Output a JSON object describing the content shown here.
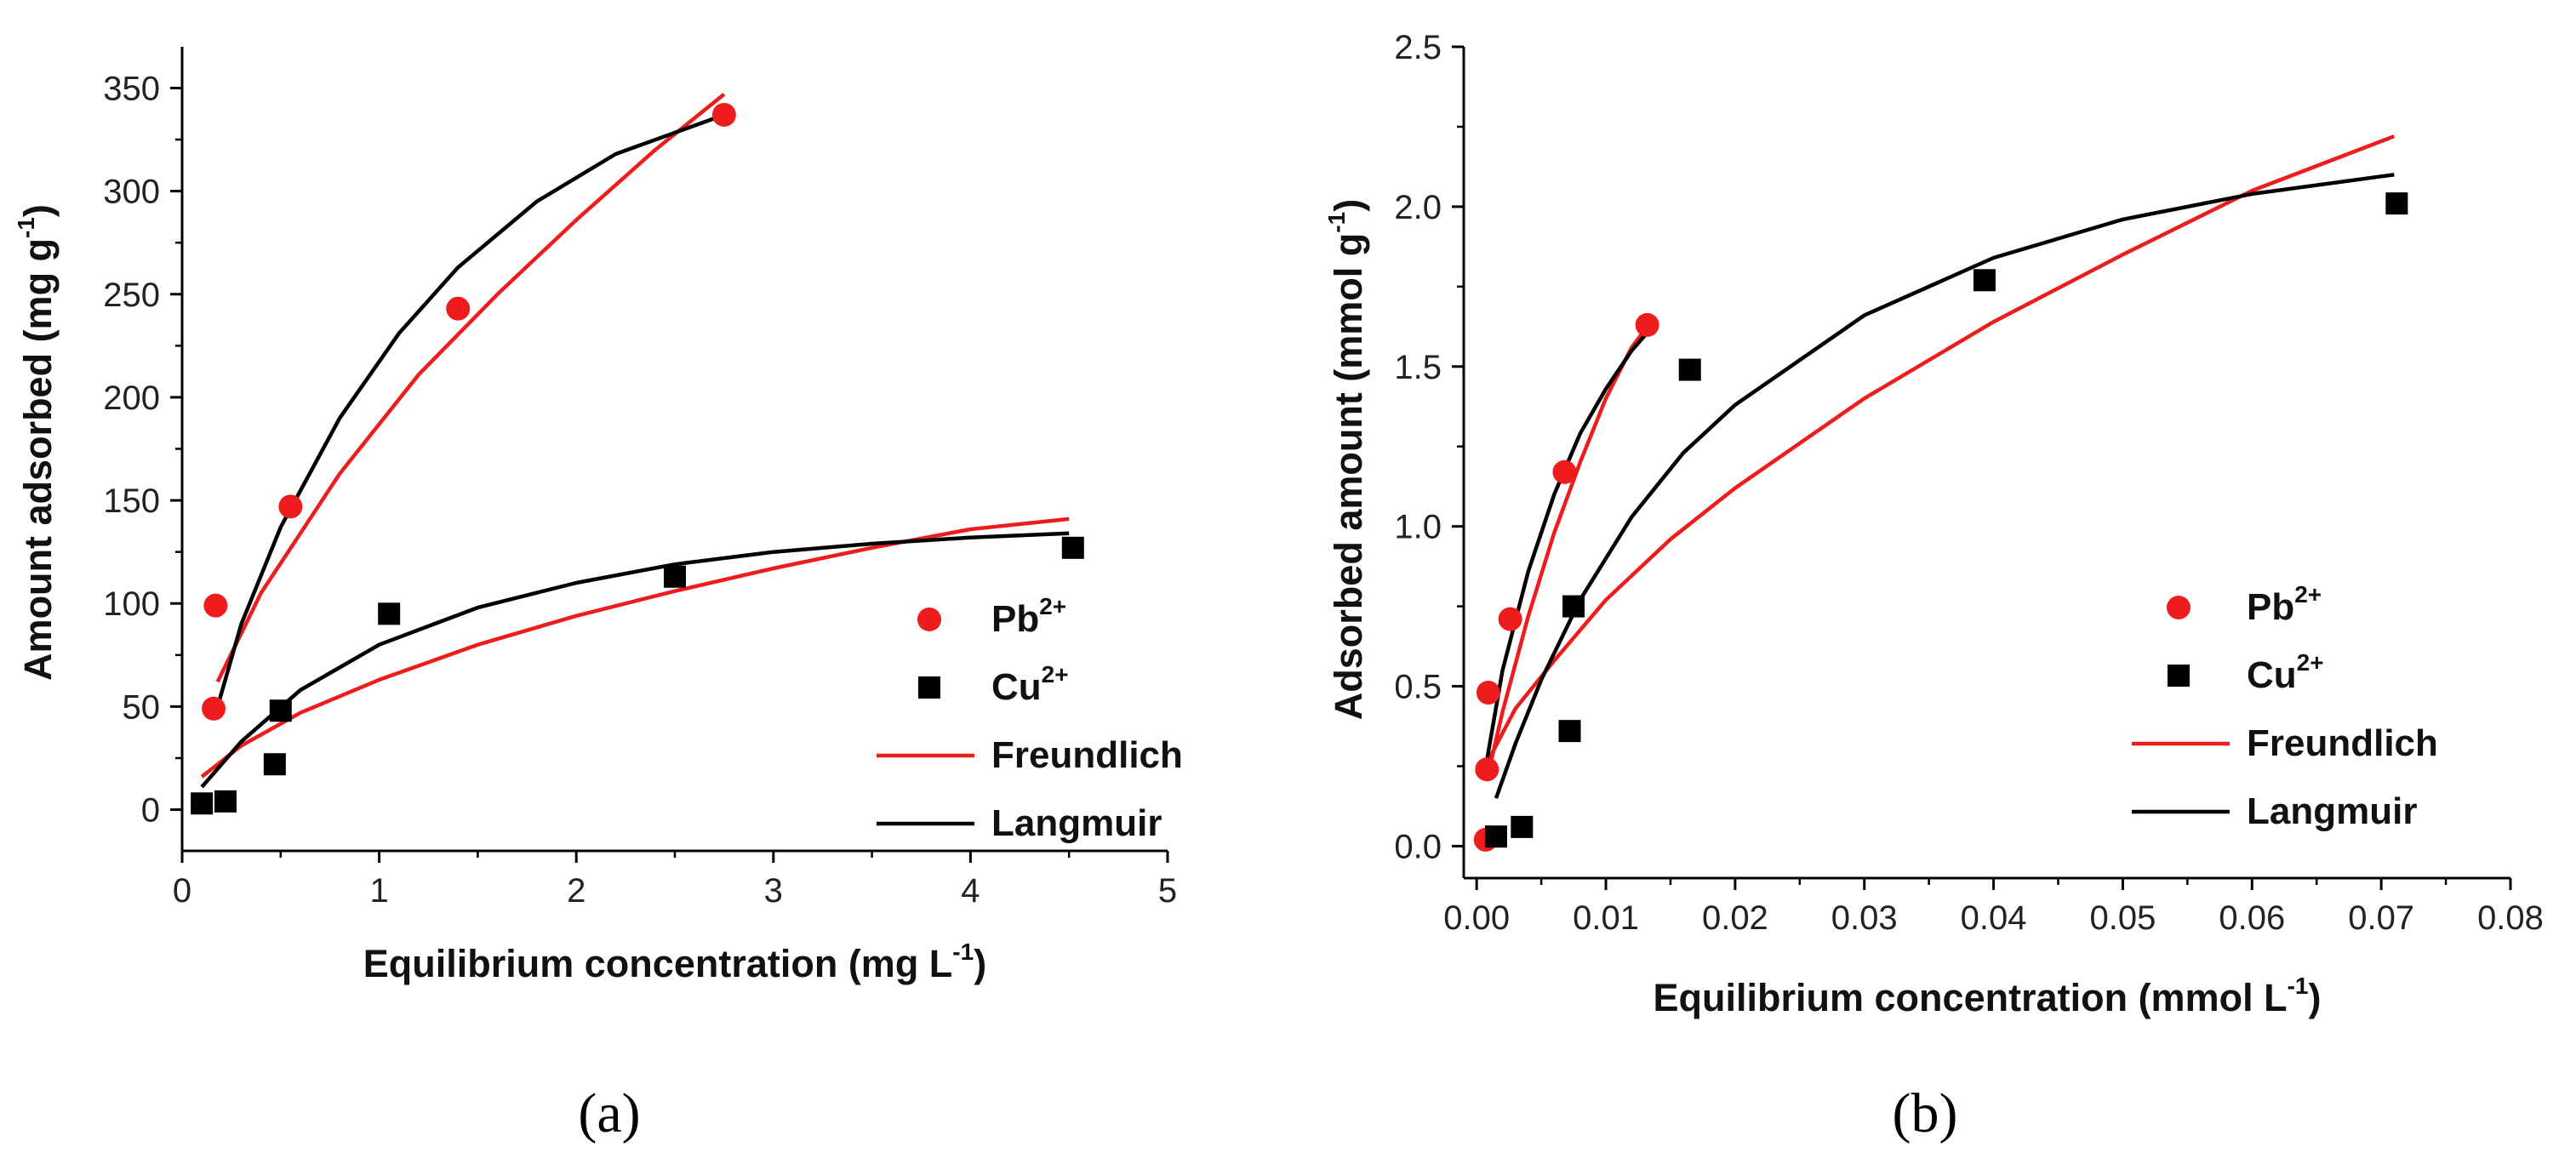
{
  "chart_data": [
    {
      "type": "scatter",
      "panel_label": "(a)",
      "panel_letter": "a",
      "xlabel": "Equilibrium concentration (mg L",
      "xlabel_sup": "-1",
      "xlabel_tail": ")",
      "ylabel": "Amount adsorbed (mg g",
      "ylabel_sup": "-1",
      "ylabel_tail": ")",
      "xlim": [
        0,
        5
      ],
      "ylim": [
        -20,
        370
      ],
      "xticks": [
        0,
        1,
        2,
        3,
        4,
        5
      ],
      "xtick_labels": [
        "0",
        "1",
        "2",
        "3",
        "4",
        "5"
      ],
      "yticks": [
        0,
        50,
        100,
        150,
        200,
        250,
        300,
        350
      ],
      "ytick_labels": [
        "0",
        "50",
        "100",
        "150",
        "200",
        "250",
        "300",
        "350"
      ],
      "grid": false,
      "legend_position": "bottom-right",
      "series": [
        {
          "name": "Pb",
          "name_sup": "2+",
          "kind": "scatter",
          "marker": "circle",
          "color": "#ee1c1c",
          "x": [
            0.16,
            0.17,
            0.55,
            1.4,
            2.75
          ],
          "y": [
            49,
            99,
            147,
            243,
            337
          ]
        },
        {
          "name": "Cu",
          "name_sup": "2+",
          "kind": "scatter",
          "marker": "square",
          "color": "#000000",
          "x": [
            0.1,
            0.22,
            0.47,
            0.5,
            1.05,
            2.5,
            4.52
          ],
          "y": [
            3,
            4,
            22,
            48,
            95,
            113,
            127
          ]
        },
        {
          "name": "Freundlich",
          "kind": "line",
          "color": "#ee1c1c",
          "segments": [
            {
              "x": [
                0.18,
                0.4,
                0.8,
                1.2,
                1.6,
                2.0,
                2.4,
                2.75
              ],
              "y": [
                62,
                105,
                163,
                211,
                250,
                286,
                320,
                347
              ]
            },
            {
              "x": [
                0.1,
                0.3,
                0.6,
                1.0,
                1.5,
                2.0,
                2.5,
                3.0,
                3.5,
                4.0,
                4.5
              ],
              "y": [
                16,
                31,
                47,
                63,
                80,
                94,
                106,
                117,
                127,
                136,
                141
              ]
            }
          ]
        },
        {
          "name": "Langmuir",
          "kind": "line",
          "color": "#000000",
          "segments": [
            {
              "x": [
                0.18,
                0.3,
                0.5,
                0.8,
                1.1,
                1.4,
                1.8,
                2.2,
                2.75
              ],
              "y": [
                50,
                90,
                137,
                190,
                231,
                263,
                295,
                318,
                337
              ]
            },
            {
              "x": [
                0.1,
                0.3,
                0.6,
                1.0,
                1.5,
                2.0,
                2.5,
                3.0,
                3.5,
                4.0,
                4.5
              ],
              "y": [
                11,
                33,
                58,
                80,
                98,
                110,
                119,
                125,
                129,
                132,
                134
              ]
            }
          ]
        }
      ]
    },
    {
      "type": "scatter",
      "panel_label": "(b)",
      "panel_letter": "b",
      "xlabel": "Equilibrium concentration (mmol L",
      "xlabel_sup": "-1",
      "xlabel_tail": ")",
      "ylabel": "Adsorbed amount (mmol g",
      "ylabel_sup": "-1",
      "ylabel_tail": ")",
      "xlim": [
        -0.001,
        0.08
      ],
      "ylim": [
        -0.1,
        2.5
      ],
      "xticks": [
        0.0,
        0.01,
        0.02,
        0.03,
        0.04,
        0.05,
        0.06,
        0.07,
        0.08
      ],
      "xtick_labels": [
        "0.00",
        "0.01",
        "0.02",
        "0.03",
        "0.04",
        "0.05",
        "0.06",
        "0.07",
        "0.08"
      ],
      "yticks": [
        0.0,
        0.5,
        1.0,
        1.5,
        2.0,
        2.5
      ],
      "ytick_labels": [
        "0.0",
        "0.5",
        "1.0",
        "1.5",
        "2.0",
        "2.5"
      ],
      "grid": false,
      "legend_position": "center-right",
      "series": [
        {
          "name": "Pb",
          "name_sup": "2+",
          "kind": "scatter",
          "marker": "circle",
          "color": "#ee1c1c",
          "x": [
            0.0007,
            0.0008,
            0.0009,
            0.0026,
            0.0068,
            0.0132
          ],
          "y": [
            0.02,
            0.24,
            0.48,
            0.71,
            1.17,
            1.63
          ]
        },
        {
          "name": "Cu",
          "name_sup": "2+",
          "kind": "scatter",
          "marker": "square",
          "color": "#000000",
          "x": [
            0.0015,
            0.0035,
            0.0072,
            0.0075,
            0.0165,
            0.0393,
            0.0712
          ],
          "y": [
            0.03,
            0.06,
            0.36,
            0.75,
            1.49,
            1.77,
            2.01
          ]
        },
        {
          "name": "Freundlich",
          "kind": "line",
          "color": "#ee1c1c",
          "segments": [
            {
              "x": [
                0.0008,
                0.002,
                0.004,
                0.006,
                0.008,
                0.01,
                0.012,
                0.0133
              ],
              "y": [
                0.21,
                0.42,
                0.72,
                0.98,
                1.2,
                1.4,
                1.56,
                1.63
              ]
            },
            {
              "x": [
                0.0008,
                0.003,
                0.006,
                0.01,
                0.015,
                0.02,
                0.03,
                0.04,
                0.05,
                0.06,
                0.071
              ],
              "y": [
                0.26,
                0.43,
                0.58,
                0.77,
                0.96,
                1.12,
                1.4,
                1.64,
                1.85,
                2.05,
                2.22
              ]
            }
          ]
        },
        {
          "name": "Langmuir",
          "kind": "line",
          "color": "#000000",
          "segments": [
            {
              "x": [
                0.0008,
                0.002,
                0.004,
                0.006,
                0.008,
                0.01,
                0.012,
                0.0133
              ],
              "y": [
                0.27,
                0.55,
                0.86,
                1.1,
                1.29,
                1.43,
                1.55,
                1.61
              ]
            },
            {
              "x": [
                0.0015,
                0.003,
                0.005,
                0.008,
                0.012,
                0.016,
                0.02,
                0.03,
                0.04,
                0.05,
                0.06,
                0.071
              ],
              "y": [
                0.15,
                0.32,
                0.52,
                0.77,
                1.03,
                1.23,
                1.38,
                1.66,
                1.84,
                1.96,
                2.04,
                2.1
              ]
            }
          ]
        }
      ]
    }
  ]
}
